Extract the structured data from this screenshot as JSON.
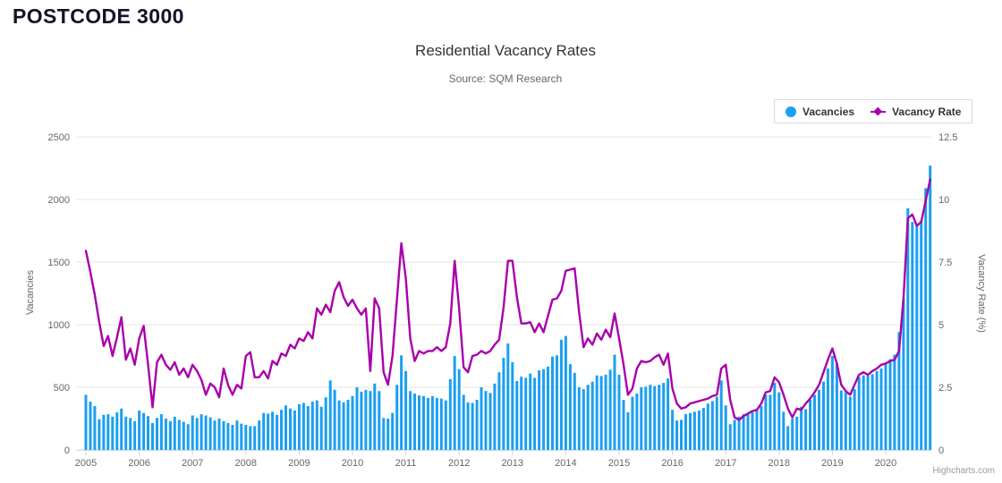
{
  "page": {
    "heading": "POSTCODE 3000",
    "credit": "Highcharts.com"
  },
  "chart_data": {
    "type": "bar+line combo (monthly time series)",
    "title": "Residential Vacancy Rates",
    "subtitle": "Source: SQM Research",
    "x_start": "2005-01",
    "x_end": "2020-11",
    "x_tick_years": [
      2005,
      2006,
      2007,
      2008,
      2009,
      2010,
      2011,
      2012,
      2013,
      2014,
      2015,
      2016,
      2017,
      2018,
      2019,
      2020
    ],
    "grid": "horizontal gridlines on",
    "legend_position": "top-right boxed",
    "axes": {
      "left": {
        "title": "Vacancies",
        "ticks": [
          "0",
          "500",
          "1000",
          "1500",
          "2000",
          "2500"
        ],
        "tick_values": [
          0,
          500,
          1000,
          1500,
          2000,
          2500
        ],
        "range": [
          0,
          2500
        ]
      },
      "right": {
        "title": "Vacancy Rate (%)",
        "ticks": [
          "0",
          "2.5",
          "5",
          "7.5",
          "10",
          "12.5"
        ],
        "tick_values": [
          0,
          2.5,
          5,
          7.5,
          10,
          12.5
        ],
        "range": [
          0,
          12.5
        ]
      }
    },
    "legend": [
      {
        "label": "Vacancies",
        "marker": "circle",
        "color": "#1b9ff0"
      },
      {
        "label": "Vacancy Rate",
        "marker": "line-diamond",
        "color": "#a800ab"
      }
    ],
    "series": [
      {
        "name": "Vacancies",
        "type": "column",
        "axis": "left",
        "color": "#1b9ff0",
        "values": [
          440,
          385,
          350,
          245,
          280,
          285,
          265,
          300,
          330,
          265,
          255,
          230,
          315,
          295,
          270,
          215,
          255,
          285,
          250,
          230,
          265,
          240,
          225,
          205,
          275,
          255,
          285,
          275,
          260,
          235,
          250,
          230,
          215,
          200,
          235,
          210,
          200,
          190,
          190,
          235,
          295,
          290,
          305,
          280,
          320,
          355,
          330,
          315,
          365,
          375,
          350,
          385,
          395,
          345,
          420,
          555,
          480,
          395,
          380,
          400,
          430,
          500,
          465,
          480,
          470,
          530,
          470,
          255,
          250,
          295,
          520,
          755,
          630,
          470,
          450,
          435,
          430,
          415,
          430,
          415,
          410,
          395,
          565,
          750,
          645,
          440,
          380,
          375,
          400,
          500,
          470,
          455,
          530,
          620,
          735,
          850,
          700,
          550,
          585,
          575,
          610,
          575,
          635,
          645,
          665,
          745,
          755,
          880,
          910,
          685,
          615,
          500,
          485,
          520,
          545,
          595,
          590,
          600,
          640,
          760,
          600,
          400,
          300,
          425,
          450,
          500,
          505,
          520,
          510,
          520,
          535,
          570,
          320,
          235,
          240,
          285,
          295,
          305,
          315,
          335,
          370,
          390,
          425,
          555,
          355,
          205,
          240,
          265,
          285,
          295,
          300,
          320,
          350,
          440,
          440,
          535,
          460,
          305,
          190,
          250,
          265,
          345,
          325,
          400,
          440,
          480,
          545,
          650,
          750,
          690,
          475,
          460,
          425,
          485,
          580,
          595,
          595,
          605,
          630,
          650,
          690,
          725,
          760,
          940,
          1210,
          1930,
          1820,
          1790,
          1830,
          2090,
          2270
        ]
      },
      {
        "name": "Vacancy Rate",
        "type": "line",
        "axis": "right",
        "color": "#a800ab",
        "values": [
          7.95,
          7.1,
          6.2,
          5.1,
          4.15,
          4.55,
          3.75,
          4.5,
          5.3,
          3.6,
          4.05,
          3.4,
          4.45,
          4.95,
          3.4,
          1.7,
          3.5,
          3.8,
          3.4,
          3.2,
          3.5,
          3.0,
          3.25,
          2.9,
          3.4,
          3.15,
          2.8,
          2.2,
          2.65,
          2.5,
          2.1,
          3.25,
          2.6,
          2.2,
          2.6,
          2.45,
          3.75,
          3.9,
          2.9,
          2.9,
          3.15,
          2.85,
          3.55,
          3.4,
          3.85,
          3.75,
          4.2,
          4.05,
          4.45,
          4.35,
          4.7,
          4.45,
          5.65,
          5.4,
          5.8,
          5.5,
          6.35,
          6.7,
          6.1,
          5.75,
          6.0,
          5.65,
          5.4,
          5.65,
          3.15,
          6.05,
          5.65,
          3.1,
          2.6,
          3.75,
          6.0,
          8.25,
          6.85,
          4.45,
          3.55,
          3.95,
          3.85,
          3.95,
          3.95,
          4.1,
          3.95,
          4.1,
          5.05,
          7.55,
          5.65,
          3.3,
          3.1,
          3.75,
          3.8,
          3.95,
          3.85,
          3.95,
          4.2,
          4.4,
          5.7,
          7.55,
          7.55,
          6.1,
          5.05,
          5.05,
          5.1,
          4.7,
          5.05,
          4.7,
          5.35,
          6.0,
          6.05,
          6.35,
          7.15,
          7.2,
          7.25,
          5.5,
          4.1,
          4.45,
          4.2,
          4.65,
          4.4,
          4.8,
          4.5,
          5.45,
          4.45,
          3.4,
          2.2,
          2.45,
          3.25,
          3.55,
          3.5,
          3.55,
          3.7,
          3.8,
          3.4,
          3.85,
          2.45,
          1.85,
          1.65,
          1.7,
          1.85,
          1.9,
          1.95,
          2.0,
          2.05,
          2.15,
          2.2,
          3.25,
          3.4,
          2.0,
          1.3,
          1.2,
          1.35,
          1.45,
          1.55,
          1.6,
          1.85,
          2.3,
          2.35,
          2.9,
          2.7,
          2.2,
          1.65,
          1.3,
          1.65,
          1.6,
          1.85,
          2.05,
          2.3,
          2.6,
          3.1,
          3.6,
          4.05,
          3.45,
          2.6,
          2.35,
          2.2,
          2.6,
          3.0,
          3.1,
          3.0,
          3.15,
          3.25,
          3.4,
          3.45,
          3.55,
          3.6,
          3.95,
          6.05,
          9.25,
          9.4,
          8.95,
          9.1,
          9.95,
          10.8
        ]
      }
    ],
    "style": {
      "gridline_color": "#e6e6e6",
      "axis_line_color": "#ccd6eb",
      "tick_label_color": "#666666",
      "title_color": "#333333",
      "subtitle_color": "#666666"
    }
  }
}
